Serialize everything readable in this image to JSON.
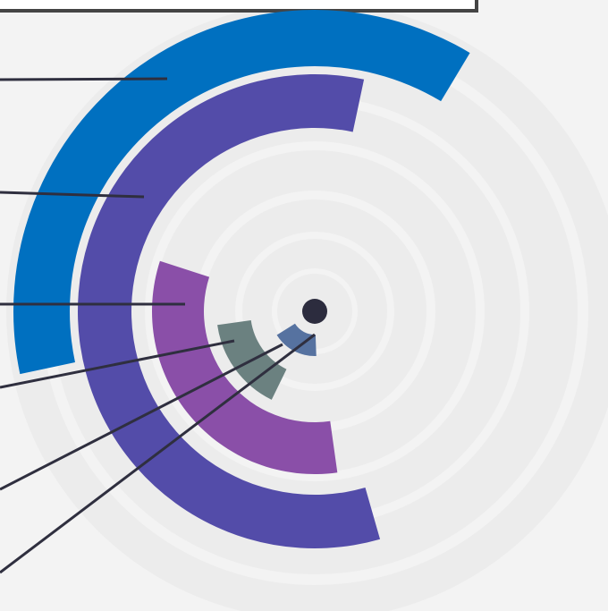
{
  "chart_data": {
    "type": "radial-bar",
    "series": [
      {
        "color": "#0070c0",
        "start": 258,
        "end": 391
      },
      {
        "color": "#534ca9",
        "start": 164,
        "end": 372
      },
      {
        "color": "#8a4fa8",
        "start": 172,
        "end": 288
      },
      {
        "color": "#6b8180",
        "start": 206,
        "end": 262
      },
      {
        "color": "#5672a0",
        "start": 178,
        "end": 238
      },
      {
        "color": "#2c2c3e",
        "start": 0,
        "end": 360
      }
    ]
  }
}
